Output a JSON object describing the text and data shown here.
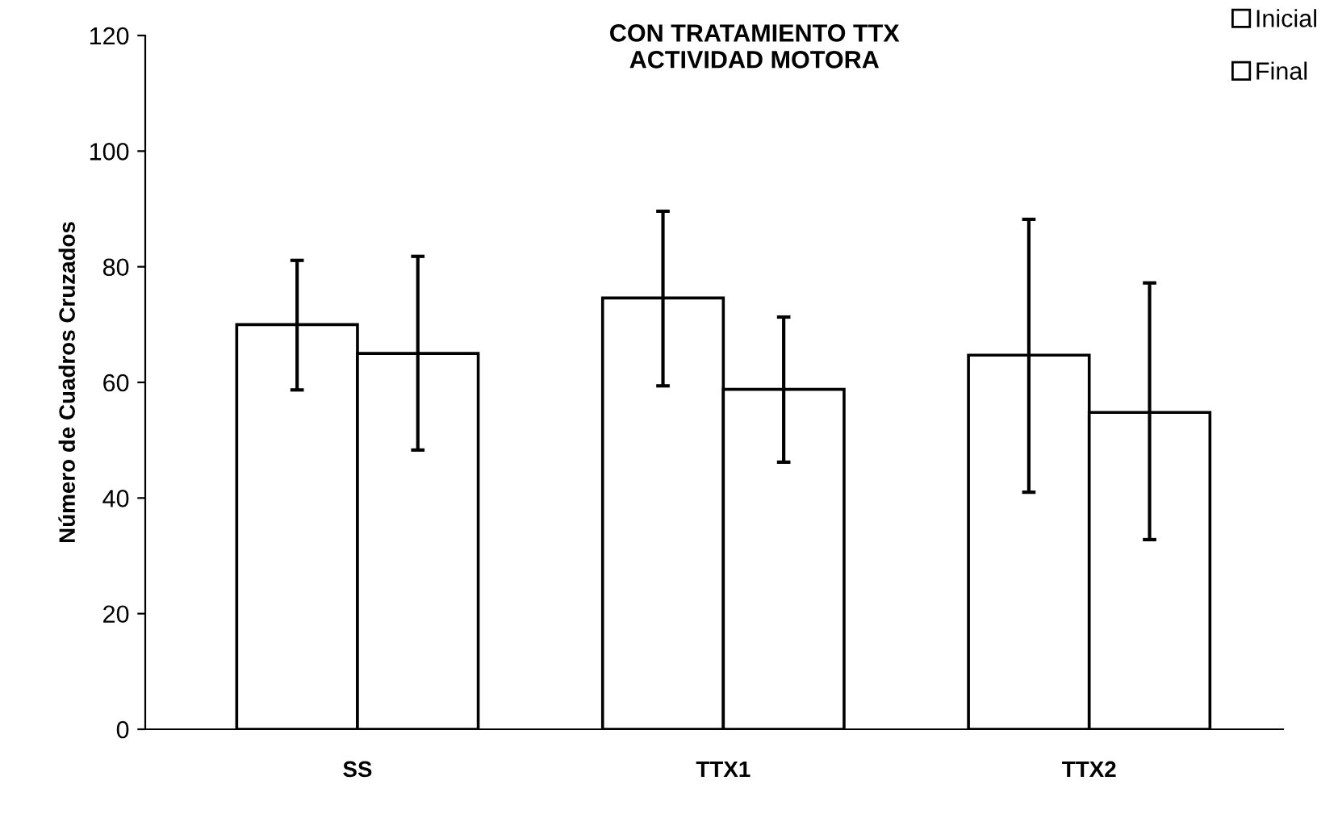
{
  "chart_data": {
    "type": "bar",
    "title": "CON TRATAMIENTO TTX\nACTIVIDAD MOTORA",
    "ylabel": "Número de Cuadros Cruzados",
    "categories": [
      "SS",
      "TTX1",
      "TTX2"
    ],
    "series": [
      {
        "name": "Inicial",
        "color": "#ffffff",
        "values": [
          70,
          74.6,
          64.7
        ],
        "errors": [
          [
            58.7,
            81.1
          ],
          [
            59.4,
            89.6
          ],
          [
            41.0,
            88.2
          ]
        ]
      },
      {
        "name": "Final",
        "color": "#ffffff",
        "values": [
          65,
          58.8,
          54.8
        ],
        "errors": [
          [
            48.3,
            81.8
          ],
          [
            46.2,
            71.3
          ],
          [
            32.8,
            77.2
          ]
        ]
      }
    ],
    "ylim": [
      0,
      120
    ],
    "yticks": [
      0,
      20,
      40,
      60,
      80,
      100,
      120
    ],
    "grid": false,
    "legend": "top right"
  }
}
